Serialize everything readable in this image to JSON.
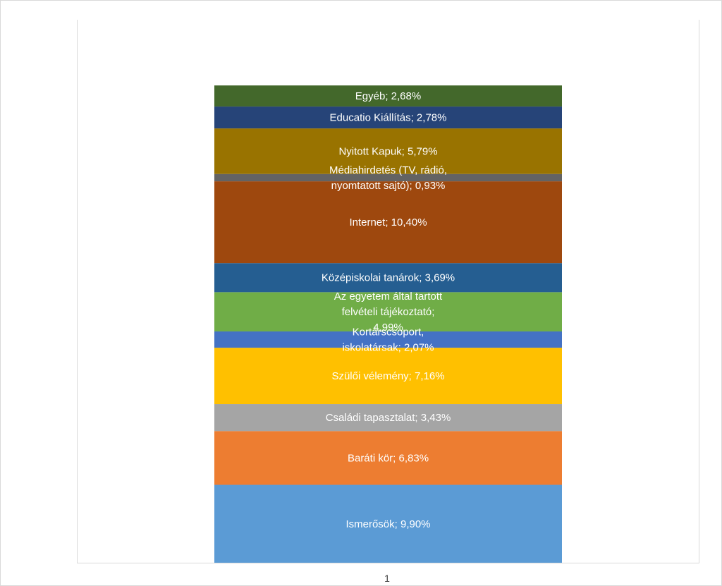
{
  "chart_data": {
    "type": "bar",
    "stacked": true,
    "categories": [
      "1"
    ],
    "ylim": [
      0,
      59.77
    ],
    "grid": false,
    "legend": "none",
    "series": [
      {
        "name": "Ismerősök",
        "value": 9.9,
        "label": "Ismerősök; 9,90%",
        "color": "#5B9BD5"
      },
      {
        "name": "Baráti kör",
        "value": 6.83,
        "label": "Baráti kör; 6,83%",
        "color": "#ED7D31"
      },
      {
        "name": "Családi tapasztalat",
        "value": 3.43,
        "label": "Családi tapasztalat; 3,43%",
        "color": "#A5A5A5"
      },
      {
        "name": "Szülői vélemény",
        "value": 7.16,
        "label": "Szülői vélemény; 7,16%",
        "color": "#FFC000"
      },
      {
        "name": "Kortárscsoport, iskolatársak",
        "value": 2.07,
        "label": "Kortárscsoport, iskolatársak; 2,07%",
        "color": "#4472C4"
      },
      {
        "name": "Az egyetem által tartott felvételi tájékoztató",
        "value": 4.99,
        "label": "Az egyetem által tartott felvételi tájékoztató; 4,99%",
        "color": "#70AD47"
      },
      {
        "name": "Középiskolai tanárok",
        "value": 3.69,
        "label": "Középiskolai tanárok; 3,69%",
        "color": "#255E91"
      },
      {
        "name": "Internet",
        "value": 10.4,
        "label": "Internet; 10,40%",
        "color": "#9E480E"
      },
      {
        "name": "Médiahirdetés (TV, rádió, nyomtatott sajtó)",
        "value": 0.93,
        "label": "Médiahirdetés (TV, rádió, nyomtatott sajtó); 0,93%",
        "color": "#636363"
      },
      {
        "name": "Nyitott Kapuk",
        "value": 5.79,
        "label": "Nyitott Kapuk; 5,79%",
        "color": "#997300"
      },
      {
        "name": "Educatio Kiállítás",
        "value": 2.78,
        "label": "Educatio Kiállítás; 2,78%",
        "color": "#264478"
      },
      {
        "name": "Egyéb",
        "value": 2.68,
        "label": "Egyéb; 2,68%",
        "color": "#43682B"
      }
    ]
  }
}
